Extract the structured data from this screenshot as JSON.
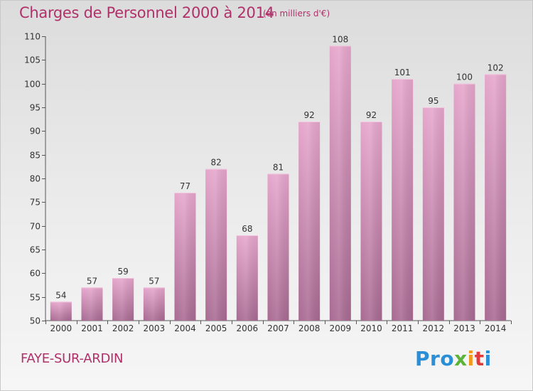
{
  "chart_data": {
    "type": "bar",
    "title": "Charges de Personnel 2000 à 2014",
    "subtitle": "(en milliers d'€)",
    "categories": [
      "2000",
      "2001",
      "2002",
      "2003",
      "2004",
      "2005",
      "2006",
      "2007",
      "2008",
      "2009",
      "2010",
      "2011",
      "2012",
      "2013",
      "2014"
    ],
    "values": [
      54,
      57,
      59,
      57,
      77,
      82,
      68,
      81,
      92,
      108,
      92,
      101,
      95,
      100,
      102
    ],
    "ylim": [
      50,
      110
    ],
    "yticks": [
      50,
      55,
      60,
      65,
      70,
      75,
      80,
      85,
      90,
      95,
      100,
      105,
      110
    ],
    "xlabel": "",
    "ylabel": "",
    "grid": false,
    "bar_color": "#cc7aa8"
  },
  "footer": {
    "town": "FAYE-SUR-ARDIN",
    "logo": {
      "p1": "Pro",
      "p2": "x",
      "p3": "i",
      "p4": "t",
      "p5": "i"
    }
  }
}
